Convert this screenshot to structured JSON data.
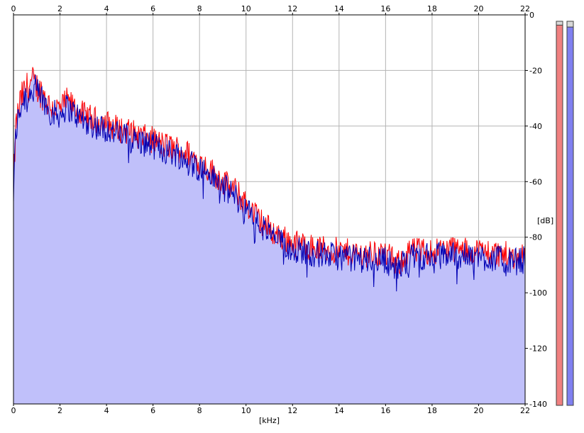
{
  "chart_data": {
    "type": "area",
    "title": "",
    "xlabel": "[kHz]",
    "ylabel": "[dB]",
    "xlim": [
      0,
      22
    ],
    "ylim": [
      -140,
      0
    ],
    "x_ticks": [
      "0",
      "2",
      "4",
      "6",
      "8",
      "10",
      "12",
      "14",
      "16",
      "18",
      "20",
      "22"
    ],
    "y_ticks": [
      "0",
      "-20",
      "-40",
      "-60",
      "-80",
      "-100",
      "-120",
      "-140"
    ],
    "grid": true,
    "legend": "none",
    "colors": {
      "fill": "#c0c0fa",
      "left_channel": "#ff0000",
      "right_channel": "#0000b4",
      "grid": "#b4b4b4",
      "meter_left": "#f08080",
      "meter_right": "#8080f0"
    },
    "envelope_points": {
      "x": [
        0.0,
        0.1,
        0.3,
        0.5,
        0.8,
        1.0,
        1.3,
        1.6,
        2.0,
        2.3,
        2.7,
        3.0,
        3.5,
        4.0,
        4.5,
        5.0,
        5.5,
        6.0,
        6.5,
        7.0,
        7.5,
        8.0,
        8.5,
        9.0,
        9.5,
        10.0,
        10.5,
        11.0,
        11.5,
        12.0,
        12.5,
        13.0,
        14.0,
        15.0,
        16.0,
        16.5,
        17.0,
        18.0,
        19.0,
        19.2,
        20.0,
        21.0,
        21.5,
        22.0
      ],
      "y": [
        -65,
        -42,
        -33,
        -29,
        -26,
        -28,
        -31,
        -35,
        -36,
        -33,
        -36,
        -38,
        -40,
        -41,
        -43,
        -44,
        -46,
        -47,
        -49,
        -50,
        -52,
        -55,
        -58,
        -62,
        -65,
        -70,
        -75,
        -79,
        -82,
        -84,
        -85,
        -86,
        -87,
        -88,
        -88,
        -92,
        -87,
        -87,
        -86,
        -87,
        -87,
        -88,
        -89,
        -88
      ]
    },
    "meters": {
      "left_level": 0.99,
      "right_level": 0.985
    }
  }
}
